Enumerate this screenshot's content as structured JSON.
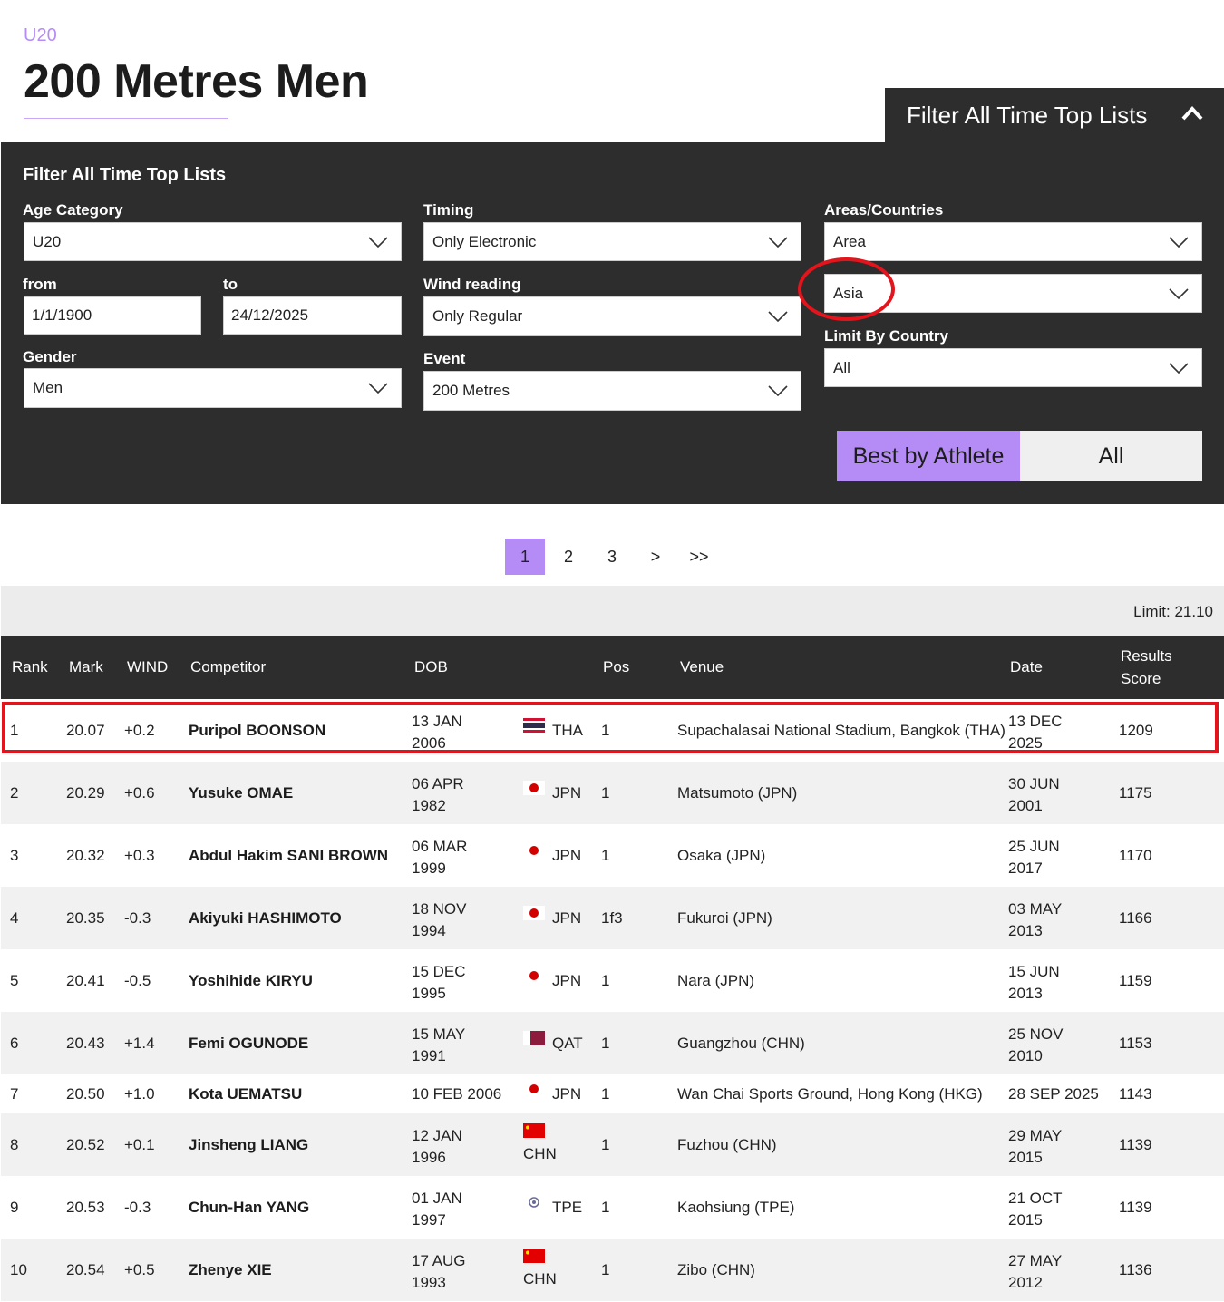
{
  "header": {
    "category": "U20",
    "title": "200 Metres Men",
    "filter_toggle": "Filter All Time Top Lists"
  },
  "filter": {
    "title": "Filter All Time Top Lists",
    "age_category_label": "Age Category",
    "age_category_value": "U20",
    "from_label": "from",
    "from_value": "1/1/1900",
    "to_label": "to",
    "to_value": "24/12/2025",
    "gender_label": "Gender",
    "gender_value": "Men",
    "timing_label": "Timing",
    "timing_value": "Only Electronic",
    "wind_label": "Wind reading",
    "wind_value": "Only Regular",
    "event_label": "Event",
    "event_value": "200 Metres",
    "areas_label": "Areas/Countries",
    "area_type_value": "Area",
    "area_value": "Asia",
    "limit_country_label": "Limit By Country",
    "limit_country_value": "All",
    "best_by_athlete": "Best by Athlete",
    "all": "All"
  },
  "pagination": [
    "1",
    "2",
    "3",
    ">",
    ">>"
  ],
  "limit_text": "Limit: 21.10",
  "columns": {
    "rank": "Rank",
    "mark": "Mark",
    "wind": "WIND",
    "competitor": "Competitor",
    "dob": "DOB",
    "pos": "Pos",
    "venue": "Venue",
    "date": "Date",
    "score_1": "Results",
    "score_2": "Score"
  },
  "rows": [
    {
      "rank": "1",
      "mark": "20.07",
      "wind": "+0.2",
      "competitor": "Puripol BOONSON",
      "dob1": "13 JAN",
      "dob2": "2006",
      "country": "THA",
      "pos": "1",
      "venue": "Supachalasai National Stadium, Bangkok (THA)",
      "date1": "13 DEC",
      "date2": "2025",
      "score": "1209"
    },
    {
      "rank": "2",
      "mark": "20.29",
      "wind": "+0.6",
      "competitor": "Yusuke OMAE",
      "dob1": "06 APR",
      "dob2": "1982",
      "country": "JPN",
      "pos": "1",
      "venue": "Matsumoto (JPN)",
      "date1": "30 JUN",
      "date2": "2001",
      "score": "1175"
    },
    {
      "rank": "3",
      "mark": "20.32",
      "wind": "+0.3",
      "competitor": "Abdul Hakim SANI BROWN",
      "dob1": "06 MAR",
      "dob2": "1999",
      "country": "JPN",
      "pos": "1",
      "venue": "Osaka (JPN)",
      "date1": "25 JUN",
      "date2": "2017",
      "score": "1170"
    },
    {
      "rank": "4",
      "mark": "20.35",
      "wind": "-0.3",
      "competitor": "Akiyuki HASHIMOTO",
      "dob1": "18 NOV",
      "dob2": "1994",
      "country": "JPN",
      "pos": "1f3",
      "venue": "Fukuroi (JPN)",
      "date1": "03 MAY",
      "date2": "2013",
      "score": "1166"
    },
    {
      "rank": "5",
      "mark": "20.41",
      "wind": "-0.5",
      "competitor": "Yoshihide KIRYU",
      "dob1": "15 DEC",
      "dob2": "1995",
      "country": "JPN",
      "pos": "1",
      "venue": "Nara (JPN)",
      "date1": "15 JUN",
      "date2": "2013",
      "score": "1159"
    },
    {
      "rank": "6",
      "mark": "20.43",
      "wind": "+1.4",
      "competitor": "Femi OGUNODE",
      "dob1": "15 MAY",
      "dob2": "1991",
      "country": "QAT",
      "pos": "1",
      "venue": "Guangzhou (CHN)",
      "date1": "25 NOV",
      "date2": "2010",
      "score": "1153"
    },
    {
      "rank": "7",
      "mark": "20.50",
      "wind": "+1.0",
      "competitor": "Kota UEMATSU",
      "dob1": "10 FEB 2006",
      "dob2": "",
      "country": "JPN",
      "pos": "1",
      "venue": "Wan Chai Sports Ground, Hong Kong (HKG)",
      "date1": "28 SEP 2025",
      "date2": "",
      "score": "1143"
    },
    {
      "rank": "8",
      "mark": "20.52",
      "wind": "+0.1",
      "competitor": "Jinsheng LIANG",
      "dob1": "12 JAN",
      "dob2": "1996",
      "country": "CHN",
      "pos": "1",
      "venue": "Fuzhou (CHN)",
      "date1": "29 MAY",
      "date2": "2015",
      "score": "1139"
    },
    {
      "rank": "9",
      "mark": "20.53",
      "wind": "-0.3",
      "competitor": "Chun-Han YANG",
      "dob1": "01 JAN",
      "dob2": "1997",
      "country": "TPE",
      "pos": "1",
      "venue": "Kaohsiung (TPE)",
      "date1": "21 OCT",
      "date2": "2015",
      "score": "1139"
    },
    {
      "rank": "10",
      "mark": "20.54",
      "wind": "+0.5",
      "competitor": "Zhenye XIE",
      "dob1": "17 AUG",
      "dob2": "1993",
      "country": "CHN",
      "pos": "1",
      "venue": "Zibo (CHN)",
      "date1": "27 MAY",
      "date2": "2012",
      "score": "1136"
    }
  ],
  "colors": {
    "accent": "#b58cf6",
    "dark": "#2d2d2d",
    "highlight": "#e3141b"
  }
}
